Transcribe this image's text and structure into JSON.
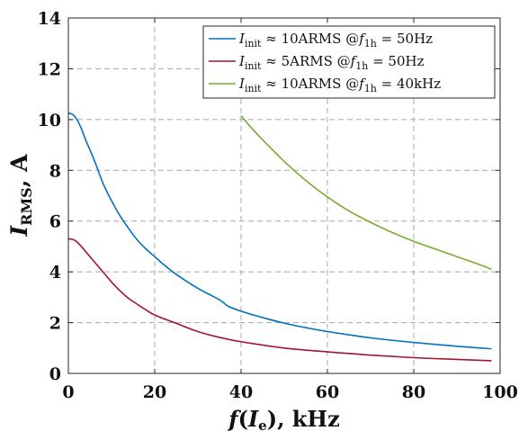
{
  "chart_data": {
    "type": "line",
    "xlabel": "f(I_e), kHz",
    "xlabel_parts": {
      "f": "f",
      "open": "(",
      "I": "I",
      "sub": "e",
      "close": "),",
      "unit": " kHz"
    },
    "ylabel": "I_RMS, A",
    "ylabel_parts": {
      "I": "I",
      "sub": "RMS",
      "unit": ", A"
    },
    "xlim": [
      0,
      100
    ],
    "ylim": [
      0,
      14
    ],
    "xticks": [
      0,
      20,
      40,
      60,
      80,
      100
    ],
    "yticks": [
      0,
      2,
      4,
      6,
      8,
      10,
      12,
      14
    ],
    "xtick_labels": [
      "0",
      "20",
      "40",
      "60",
      "80",
      "100"
    ],
    "ytick_labels": [
      "0",
      "2",
      "4",
      "6",
      "8",
      "10",
      "12",
      "14"
    ],
    "grid": true,
    "legend_position": "top-right",
    "series": [
      {
        "name": "I_init ≈ 10ARMS @f_1h = 50Hz",
        "legend": {
          "I": "I",
          "sub1": "init",
          "mid": " ≈ 10ARMS @",
          "f": "f",
          "sub2": "1h",
          "end": " = 50Hz"
        },
        "color": "#0072BD",
        "x": [
          0,
          1,
          2,
          3,
          4,
          6,
          8,
          10,
          12,
          14,
          16,
          18,
          20,
          22,
          25,
          30,
          35,
          37,
          40,
          45,
          50,
          55,
          60,
          70,
          80,
          90,
          98
        ],
        "y": [
          10.25,
          10.2,
          10.0,
          9.65,
          9.2,
          8.4,
          7.5,
          6.8,
          6.2,
          5.7,
          5.25,
          4.9,
          4.6,
          4.3,
          3.9,
          3.35,
          2.9,
          2.65,
          2.45,
          2.2,
          1.98,
          1.8,
          1.65,
          1.4,
          1.22,
          1.07,
          0.97
        ]
      },
      {
        "name": "I_init ≈ 5ARMS @f_1h = 50Hz",
        "legend": {
          "I": "I",
          "sub1": "init",
          "mid": " ≈ 5ARMS @",
          "f": "f",
          "sub2": "1h",
          "end": " = 50Hz"
        },
        "color": "#A2142F",
        "x": [
          0,
          1,
          2,
          3,
          4,
          6,
          8,
          10,
          12,
          14,
          16,
          18,
          20,
          25,
          30,
          35,
          40,
          50,
          60,
          70,
          80,
          90,
          98
        ],
        "y": [
          5.3,
          5.28,
          5.18,
          5.0,
          4.8,
          4.4,
          4.0,
          3.6,
          3.25,
          2.95,
          2.72,
          2.5,
          2.3,
          1.97,
          1.65,
          1.42,
          1.25,
          1.0,
          0.85,
          0.72,
          0.62,
          0.55,
          0.5
        ]
      },
      {
        "name": "I_init ≈ 10ARMS @f_1h = 40kHz",
        "legend": {
          "I": "I",
          "sub1": "init",
          "mid": " ≈ 10ARMS @",
          "f": "f",
          "sub2": "1h",
          "end": " = 40kHz"
        },
        "color": "#77AC30",
        "x": [
          40,
          42,
          45,
          50,
          55,
          60,
          65,
          70,
          75,
          80,
          85,
          90,
          95,
          98
        ],
        "y": [
          10.15,
          9.75,
          9.2,
          8.35,
          7.6,
          6.95,
          6.4,
          5.95,
          5.55,
          5.2,
          4.9,
          4.6,
          4.3,
          4.1
        ]
      }
    ]
  }
}
